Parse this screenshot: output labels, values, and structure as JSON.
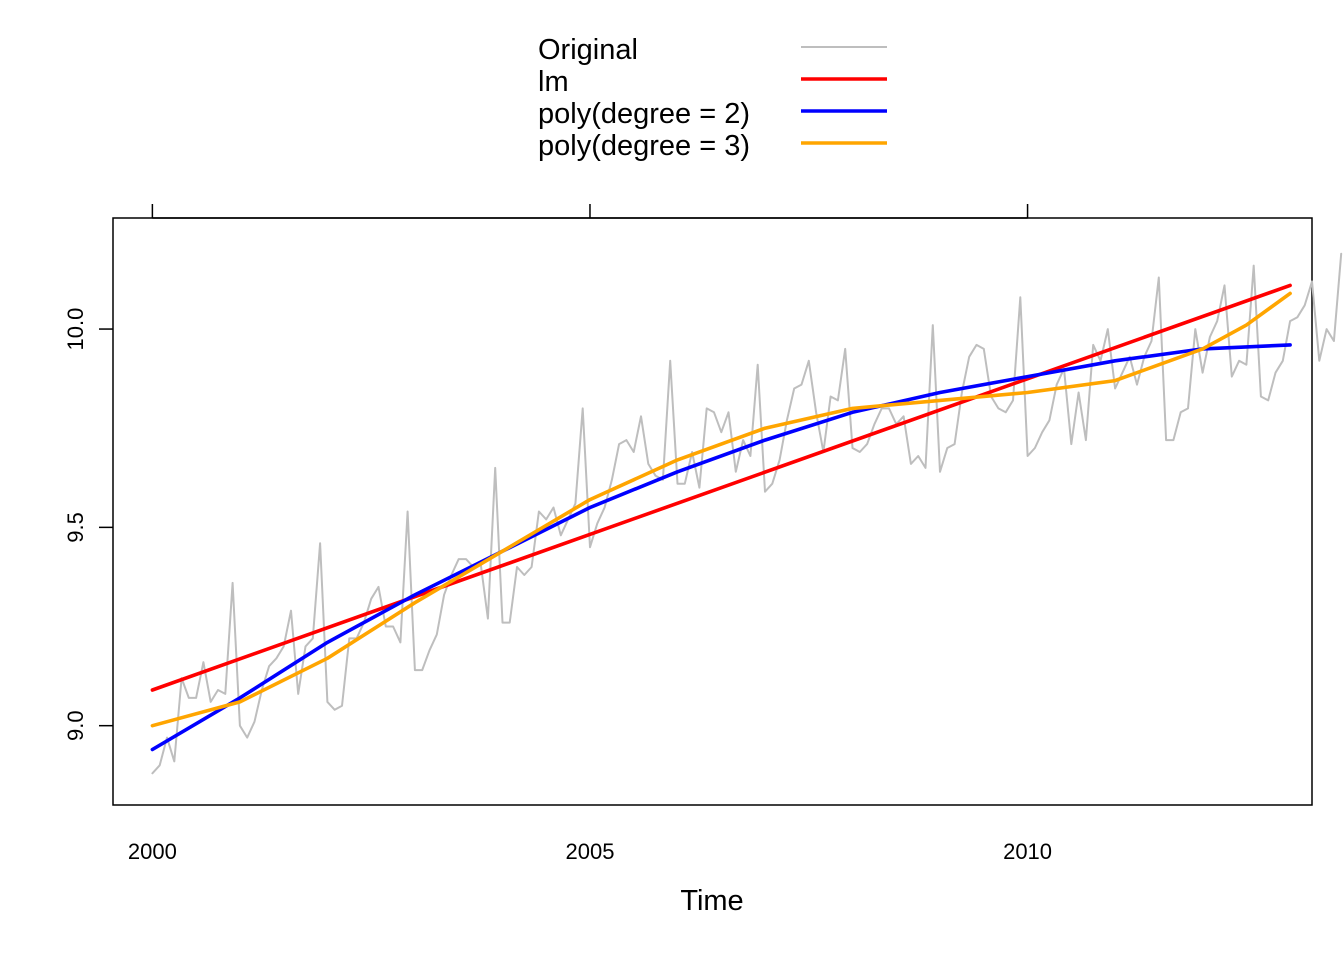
{
  "chart_data": {
    "type": "line",
    "title": "",
    "xlabel": "Time",
    "ylabel": "",
    "xlim": [
      1999.55,
      2013.25
    ],
    "ylim": [
      8.8,
      10.28
    ],
    "x_ticks": [
      2000,
      2005,
      2010
    ],
    "x_tick_labels": [
      "2000",
      "2005",
      "2010"
    ],
    "y_ticks": [
      9.0,
      9.5,
      10.0
    ],
    "y_tick_labels": [
      "9.0",
      "9.5",
      "10.0"
    ],
    "grid": false,
    "legend_position": "top-center",
    "original_monthly": {
      "start": 2000.0,
      "step": 0.0833333,
      "values": [
        8.88,
        8.9,
        8.97,
        8.91,
        9.12,
        9.07,
        9.07,
        9.16,
        9.06,
        9.09,
        9.08,
        9.36,
        9.0,
        8.97,
        9.01,
        9.09,
        9.15,
        9.17,
        9.2,
        9.29,
        9.08,
        9.2,
        9.22,
        9.46,
        9.06,
        9.04,
        9.05,
        9.22,
        9.22,
        9.26,
        9.32,
        9.35,
        9.25,
        9.25,
        9.21,
        9.54,
        9.14,
        9.14,
        9.19,
        9.23,
        9.33,
        9.38,
        9.42,
        9.42,
        9.4,
        9.41,
        9.27,
        9.65,
        9.26,
        9.26,
        9.4,
        9.38,
        9.4,
        9.54,
        9.52,
        9.55,
        9.48,
        9.52,
        9.56,
        9.8,
        9.45,
        9.51,
        9.55,
        9.62,
        9.71,
        9.72,
        9.69,
        9.78,
        9.66,
        9.63,
        9.62,
        9.92,
        9.61,
        9.61,
        9.69,
        9.6,
        9.8,
        9.79,
        9.74,
        9.79,
        9.64,
        9.72,
        9.68,
        9.91,
        9.59,
        9.61,
        9.67,
        9.77,
        9.85,
        9.86,
        9.92,
        9.79,
        9.69,
        9.83,
        9.82,
        9.95,
        9.7,
        9.69,
        9.71,
        9.76,
        9.8,
        9.8,
        9.76,
        9.78,
        9.66,
        9.68,
        9.65,
        10.01,
        9.64,
        9.7,
        9.71,
        9.84,
        9.93,
        9.96,
        9.95,
        9.83,
        9.8,
        9.79,
        9.82,
        10.08,
        9.68,
        9.7,
        9.74,
        9.77,
        9.86,
        9.9,
        9.71,
        9.84,
        9.72,
        9.96,
        9.92,
        10.0,
        9.85,
        9.89,
        9.93,
        9.86,
        9.93,
        9.97,
        10.13,
        9.72,
        9.72,
        9.79,
        9.8,
        10.0,
        9.89,
        9.98,
        10.02,
        10.11,
        9.88,
        9.92,
        9.91,
        10.16,
        9.83,
        9.82,
        9.89,
        9.92,
        10.02,
        10.03,
        10.06,
        10.12,
        9.92,
        10.0,
        9.97,
        10.19
      ]
    },
    "series": [
      {
        "name": "Original",
        "color": "#BEBEBE",
        "source": "original_monthly"
      },
      {
        "name": "lm",
        "color": "#FF0000",
        "x": [
          2000.0,
          2013.0
        ],
        "y": [
          9.09,
          10.11
        ]
      },
      {
        "name": "poly(degree = 2)",
        "color": "#0000FF",
        "x": [
          2000.0,
          2001.0,
          2002.0,
          2003.0,
          2004.0,
          2005.0,
          2006.0,
          2007.0,
          2008.0,
          2009.0,
          2010.0,
          2011.0,
          2012.0,
          2013.0
        ],
        "y": [
          8.94,
          9.07,
          9.21,
          9.33,
          9.44,
          9.55,
          9.64,
          9.72,
          9.79,
          9.84,
          9.88,
          9.92,
          9.95,
          9.96
        ]
      },
      {
        "name": "poly(degree = 3)",
        "color": "#FFA500",
        "x": [
          2000.0,
          2001.0,
          2002.0,
          2003.0,
          2004.0,
          2005.0,
          2006.0,
          2007.0,
          2008.0,
          2009.0,
          2010.0,
          2011.0,
          2012.0,
          2012.5,
          2013.0
        ],
        "y": [
          9.0,
          9.06,
          9.17,
          9.31,
          9.44,
          9.57,
          9.67,
          9.75,
          9.8,
          9.82,
          9.84,
          9.87,
          9.95,
          10.01,
          10.09
        ]
      }
    ]
  }
}
